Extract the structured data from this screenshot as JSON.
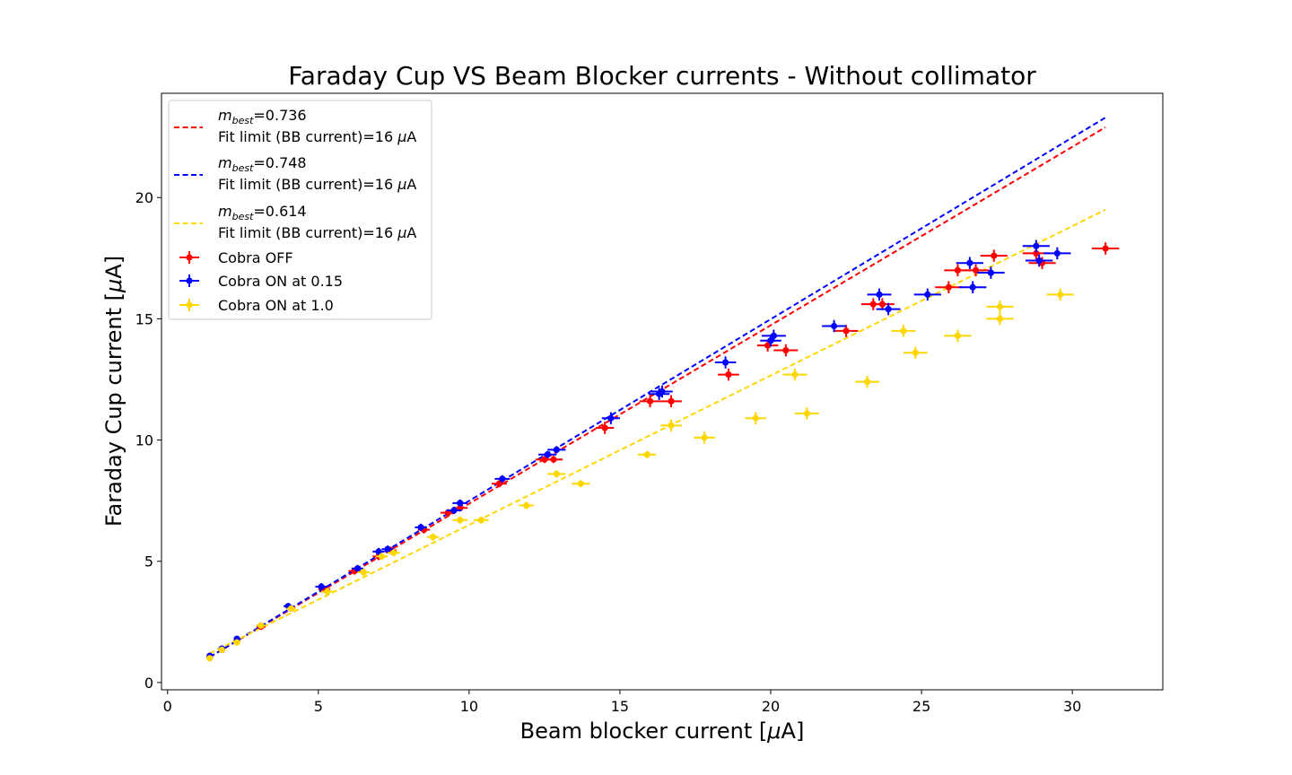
{
  "chart_data": {
    "type": "scatter",
    "title": "Faraday Cup VS Beam Blocker currents - Without collimator",
    "xlabel": "Beam blocker current [",
    "xlabel_mu": "μ",
    "xlabel_unit": "A]",
    "ylabel": "Faraday Cup current [",
    "ylabel_mu": "μ",
    "ylabel_unit": "A]",
    "xlim": [
      -0.2,
      33.0
    ],
    "ylim": [
      -0.3,
      24.3
    ],
    "x_ticks": [
      0,
      5,
      10,
      15,
      20,
      25,
      30
    ],
    "y_ticks": [
      0,
      5,
      10,
      15,
      20
    ],
    "legend_position": "upper-left",
    "fits": [
      {
        "m_label": "m",
        "m_sub": "best",
        "m_value": "=0.736",
        "limit_label": "Fit limit (BB current)=16 ",
        "limit_mu": "μ",
        "limit_unit": "A",
        "color": "#ff0000",
        "x": [
          1.4,
          31.1
        ],
        "y": [
          1.05,
          22.9
        ]
      },
      {
        "m_label": "m",
        "m_sub": "best",
        "m_value": "=0.748",
        "limit_label": "Fit limit (BB current)=16 ",
        "limit_mu": "μ",
        "limit_unit": "A",
        "color": "#0000ff",
        "x": [
          1.4,
          31.1
        ],
        "y": [
          1.05,
          23.3
        ]
      },
      {
        "m_label": "m",
        "m_sub": "best",
        "m_value": "=0.614",
        "limit_label": "Fit limit (BB current)=16 ",
        "limit_mu": "μ",
        "limit_unit": "A",
        "color": "#ffd700",
        "x": [
          1.4,
          31.1
        ],
        "y": [
          1.2,
          19.5
        ]
      }
    ],
    "series": [
      {
        "name": "Cobra OFF",
        "color": "#ff0000",
        "points": [
          {
            "x": 1.4,
            "y": 1.05,
            "xerr": 0.1,
            "yerr": 0.1
          },
          {
            "x": 1.8,
            "y": 1.35,
            "xerr": 0.1,
            "yerr": 0.1
          },
          {
            "x": 2.3,
            "y": 1.7,
            "xerr": 0.1,
            "yerr": 0.1
          },
          {
            "x": 3.1,
            "y": 2.3,
            "xerr": 0.15,
            "yerr": 0.1
          },
          {
            "x": 4.1,
            "y": 3.05,
            "xerr": 0.15,
            "yerr": 0.1
          },
          {
            "x": 5.2,
            "y": 3.85,
            "xerr": 0.2,
            "yerr": 0.15
          },
          {
            "x": 6.2,
            "y": 4.6,
            "xerr": 0.2,
            "yerr": 0.15
          },
          {
            "x": 7.0,
            "y": 5.2,
            "xerr": 0.2,
            "yerr": 0.15
          },
          {
            "x": 7.4,
            "y": 5.45,
            "xerr": 0.2,
            "yerr": 0.15
          },
          {
            "x": 8.5,
            "y": 6.3,
            "xerr": 0.2,
            "yerr": 0.15
          },
          {
            "x": 9.3,
            "y": 7.0,
            "xerr": 0.25,
            "yerr": 0.15
          },
          {
            "x": 9.7,
            "y": 7.2,
            "xerr": 0.25,
            "yerr": 0.15
          },
          {
            "x": 11.0,
            "y": 8.2,
            "xerr": 0.25,
            "yerr": 0.15
          },
          {
            "x": 12.5,
            "y": 9.2,
            "xerr": 0.3,
            "yerr": 0.15
          },
          {
            "x": 12.8,
            "y": 9.2,
            "xerr": 0.3,
            "yerr": 0.15
          },
          {
            "x": 14.5,
            "y": 10.5,
            "xerr": 0.3,
            "yerr": 0.25
          },
          {
            "x": 16.0,
            "y": 11.6,
            "xerr": 0.35,
            "yerr": 0.25
          },
          {
            "x": 16.7,
            "y": 11.6,
            "xerr": 0.35,
            "yerr": 0.25
          },
          {
            "x": 18.6,
            "y": 12.7,
            "xerr": 0.35,
            "yerr": 0.25
          },
          {
            "x": 19.9,
            "y": 13.9,
            "xerr": 0.35,
            "yerr": 0.25
          },
          {
            "x": 20.5,
            "y": 13.7,
            "xerr": 0.4,
            "yerr": 0.25
          },
          {
            "x": 22.5,
            "y": 14.5,
            "xerr": 0.4,
            "yerr": 0.25
          },
          {
            "x": 23.4,
            "y": 15.6,
            "xerr": 0.4,
            "yerr": 0.25
          },
          {
            "x": 23.7,
            "y": 15.6,
            "xerr": 0.4,
            "yerr": 0.25
          },
          {
            "x": 25.9,
            "y": 16.3,
            "xerr": 0.45,
            "yerr": 0.25
          },
          {
            "x": 26.2,
            "y": 17.0,
            "xerr": 0.45,
            "yerr": 0.25
          },
          {
            "x": 26.8,
            "y": 17.0,
            "xerr": 0.45,
            "yerr": 0.25
          },
          {
            "x": 27.4,
            "y": 17.6,
            "xerr": 0.45,
            "yerr": 0.25
          },
          {
            "x": 28.8,
            "y": 17.7,
            "xerr": 0.45,
            "yerr": 0.25
          },
          {
            "x": 29.0,
            "y": 17.3,
            "xerr": 0.45,
            "yerr": 0.25
          },
          {
            "x": 31.1,
            "y": 17.9,
            "xerr": 0.45,
            "yerr": 0.25
          }
        ]
      },
      {
        "name": "Cobra ON at 0.15",
        "color": "#0000ff",
        "points": [
          {
            "x": 1.4,
            "y": 1.1,
            "xerr": 0.1,
            "yerr": 0.1
          },
          {
            "x": 1.8,
            "y": 1.4,
            "xerr": 0.1,
            "yerr": 0.1
          },
          {
            "x": 2.3,
            "y": 1.8,
            "xerr": 0.1,
            "yerr": 0.1
          },
          {
            "x": 3.1,
            "y": 2.35,
            "xerr": 0.15,
            "yerr": 0.1
          },
          {
            "x": 4.0,
            "y": 3.15,
            "xerr": 0.15,
            "yerr": 0.1
          },
          {
            "x": 5.1,
            "y": 3.95,
            "xerr": 0.2,
            "yerr": 0.15
          },
          {
            "x": 6.3,
            "y": 4.7,
            "xerr": 0.2,
            "yerr": 0.15
          },
          {
            "x": 7.0,
            "y": 5.4,
            "xerr": 0.2,
            "yerr": 0.15
          },
          {
            "x": 7.3,
            "y": 5.5,
            "xerr": 0.2,
            "yerr": 0.15
          },
          {
            "x": 8.4,
            "y": 6.4,
            "xerr": 0.2,
            "yerr": 0.15
          },
          {
            "x": 9.5,
            "y": 7.1,
            "xerr": 0.25,
            "yerr": 0.15
          },
          {
            "x": 9.7,
            "y": 7.4,
            "xerr": 0.25,
            "yerr": 0.15
          },
          {
            "x": 11.1,
            "y": 8.4,
            "xerr": 0.25,
            "yerr": 0.15
          },
          {
            "x": 12.6,
            "y": 9.4,
            "xerr": 0.3,
            "yerr": 0.15
          },
          {
            "x": 12.9,
            "y": 9.6,
            "xerr": 0.3,
            "yerr": 0.15
          },
          {
            "x": 14.7,
            "y": 10.9,
            "xerr": 0.3,
            "yerr": 0.25
          },
          {
            "x": 16.3,
            "y": 11.9,
            "xerr": 0.35,
            "yerr": 0.25
          },
          {
            "x": 16.4,
            "y": 12.0,
            "xerr": 0.35,
            "yerr": 0.25
          },
          {
            "x": 18.5,
            "y": 13.2,
            "xerr": 0.35,
            "yerr": 0.25
          },
          {
            "x": 20.0,
            "y": 14.1,
            "xerr": 0.35,
            "yerr": 0.25
          },
          {
            "x": 20.1,
            "y": 14.3,
            "xerr": 0.4,
            "yerr": 0.25
          },
          {
            "x": 22.1,
            "y": 14.7,
            "xerr": 0.4,
            "yerr": 0.25
          },
          {
            "x": 23.6,
            "y": 16.0,
            "xerr": 0.4,
            "yerr": 0.25
          },
          {
            "x": 23.9,
            "y": 15.4,
            "xerr": 0.4,
            "yerr": 0.25
          },
          {
            "x": 25.2,
            "y": 16.0,
            "xerr": 0.45,
            "yerr": 0.25
          },
          {
            "x": 26.6,
            "y": 17.3,
            "xerr": 0.45,
            "yerr": 0.25
          },
          {
            "x": 26.7,
            "y": 16.3,
            "xerr": 0.45,
            "yerr": 0.25
          },
          {
            "x": 27.3,
            "y": 16.9,
            "xerr": 0.45,
            "yerr": 0.25
          },
          {
            "x": 28.8,
            "y": 18.0,
            "xerr": 0.45,
            "yerr": 0.25
          },
          {
            "x": 28.9,
            "y": 17.4,
            "xerr": 0.45,
            "yerr": 0.25
          },
          {
            "x": 29.5,
            "y": 17.7,
            "xerr": 0.45,
            "yerr": 0.25
          }
        ]
      },
      {
        "name": "Cobra ON at 1.0",
        "color": "#ffd700",
        "points": [
          {
            "x": 1.4,
            "y": 1.0,
            "xerr": 0.1,
            "yerr": 0.1
          },
          {
            "x": 1.8,
            "y": 1.35,
            "xerr": 0.1,
            "yerr": 0.1
          },
          {
            "x": 2.3,
            "y": 1.65,
            "xerr": 0.1,
            "yerr": 0.1
          },
          {
            "x": 3.1,
            "y": 2.35,
            "xerr": 0.15,
            "yerr": 0.1
          },
          {
            "x": 4.1,
            "y": 3.05,
            "xerr": 0.15,
            "yerr": 0.1
          },
          {
            "x": 5.3,
            "y": 3.75,
            "xerr": 0.2,
            "yerr": 0.15
          },
          {
            "x": 6.5,
            "y": 4.55,
            "xerr": 0.2,
            "yerr": 0.15
          },
          {
            "x": 7.1,
            "y": 5.2,
            "xerr": 0.2,
            "yerr": 0.15
          },
          {
            "x": 7.5,
            "y": 5.35,
            "xerr": 0.2,
            "yerr": 0.15
          },
          {
            "x": 8.8,
            "y": 6.0,
            "xerr": 0.2,
            "yerr": 0.15
          },
          {
            "x": 9.7,
            "y": 6.7,
            "xerr": 0.25,
            "yerr": 0.15
          },
          {
            "x": 10.4,
            "y": 6.7,
            "xerr": 0.25,
            "yerr": 0.15
          },
          {
            "x": 11.9,
            "y": 7.3,
            "xerr": 0.25,
            "yerr": 0.15
          },
          {
            "x": 12.9,
            "y": 8.6,
            "xerr": 0.3,
            "yerr": 0.15
          },
          {
            "x": 13.7,
            "y": 8.2,
            "xerr": 0.3,
            "yerr": 0.15
          },
          {
            "x": 15.9,
            "y": 9.4,
            "xerr": 0.3,
            "yerr": 0.15
          },
          {
            "x": 16.7,
            "y": 10.6,
            "xerr": 0.35,
            "yerr": 0.25
          },
          {
            "x": 17.8,
            "y": 10.1,
            "xerr": 0.35,
            "yerr": 0.25
          },
          {
            "x": 19.5,
            "y": 10.9,
            "xerr": 0.35,
            "yerr": 0.25
          },
          {
            "x": 20.8,
            "y": 12.7,
            "xerr": 0.4,
            "yerr": 0.25
          },
          {
            "x": 21.2,
            "y": 11.1,
            "xerr": 0.4,
            "yerr": 0.25
          },
          {
            "x": 23.2,
            "y": 12.4,
            "xerr": 0.4,
            "yerr": 0.25
          },
          {
            "x": 24.4,
            "y": 14.5,
            "xerr": 0.4,
            "yerr": 0.25
          },
          {
            "x": 24.8,
            "y": 13.6,
            "xerr": 0.4,
            "yerr": 0.25
          },
          {
            "x": 26.2,
            "y": 14.3,
            "xerr": 0.45,
            "yerr": 0.25
          },
          {
            "x": 27.6,
            "y": 15.5,
            "xerr": 0.45,
            "yerr": 0.25
          },
          {
            "x": 27.6,
            "y": 15.0,
            "xerr": 0.45,
            "yerr": 0.25
          },
          {
            "x": 29.6,
            "y": 16.0,
            "xerr": 0.45,
            "yerr": 0.25
          }
        ]
      }
    ]
  }
}
